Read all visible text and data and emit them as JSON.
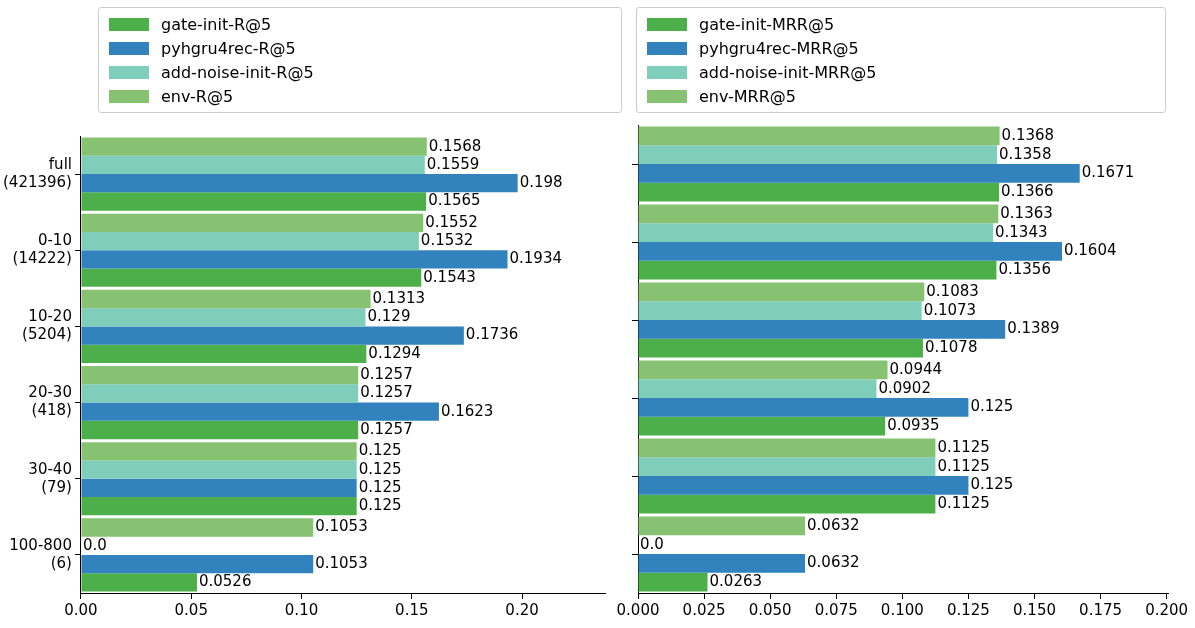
{
  "chart_data": [
    {
      "type": "bar",
      "orientation": "horizontal",
      "categories": [
        "full (421396)",
        "0-10 (14222)",
        "10-20 (5204)",
        "20-30 (418)",
        "30-40 (79)",
        "100-800 (6)"
      ],
      "series": [
        {
          "name": "gate-init-R@5",
          "color": "#4daf4a",
          "values": [
            0.1565,
            0.1543,
            0.1294,
            0.1257,
            0.125,
            0.0526
          ],
          "value_labels": [
            "0.1565",
            "0.1543",
            "0.1294",
            "0.1257",
            "0.125",
            "0.0526"
          ]
        },
        {
          "name": "pyhgru4rec-R@5",
          "color": "#3182bd",
          "values": [
            0.198,
            0.1934,
            0.1736,
            0.1623,
            0.125,
            0.1053
          ],
          "value_labels": [
            "0.198",
            "0.1934",
            "0.1736",
            "0.1623",
            "0.125",
            "0.1053"
          ]
        },
        {
          "name": "add-noise-init-R@5",
          "color": "#7fcdbb",
          "values": [
            0.1559,
            0.1532,
            0.129,
            0.1257,
            0.125,
            0.0
          ],
          "value_labels": [
            "0.1559",
            "0.1532",
            "0.129",
            "0.1257",
            "0.125",
            "0.0"
          ]
        },
        {
          "name": "env-R@5",
          "color": "#86c271",
          "values": [
            0.1568,
            0.1552,
            0.1313,
            0.1257,
            0.125,
            0.1053
          ],
          "value_labels": [
            "0.1568",
            "0.1552",
            "0.1313",
            "0.1257",
            "0.125",
            "0.1053"
          ]
        }
      ],
      "xlim": [
        0,
        0.2376
      ],
      "xticks": [
        {
          "value": 0,
          "label": "0.00"
        },
        {
          "value": 0.05,
          "label": "0.05"
        },
        {
          "value": 0.1,
          "label": "0.10"
        },
        {
          "value": 0.15,
          "label": "0.15"
        },
        {
          "value": 0.2,
          "label": "0.20"
        }
      ],
      "legend": "top"
    },
    {
      "type": "bar",
      "orientation": "horizontal",
      "categories": [
        null,
        null,
        null,
        null,
        null,
        null
      ],
      "series": [
        {
          "name": "gate-init-MRR@5",
          "color": "#4daf4a",
          "values": [
            0.1366,
            0.1356,
            0.1078,
            0.0935,
            0.1125,
            0.0263
          ],
          "value_labels": [
            "0.1366",
            "0.1356",
            "0.1078",
            "0.0935",
            "0.1125",
            "0.0263"
          ]
        },
        {
          "name": "pyhgru4rec-MRR@5",
          "color": "#3182bd",
          "values": [
            0.1671,
            0.1604,
            0.1389,
            0.125,
            0.125,
            0.0632
          ],
          "value_labels": [
            "0.1671",
            "0.1604",
            "0.1389",
            "0.125",
            "0.125",
            "0.0632"
          ]
        },
        {
          "name": "add-noise-init-MRR@5",
          "color": "#7fcdbb",
          "values": [
            0.1358,
            0.1343,
            0.1073,
            0.0902,
            0.1125,
            0.0
          ],
          "value_labels": [
            "0.1358",
            "0.1343",
            "0.1073",
            "0.0902",
            "0.1125",
            "0.0"
          ]
        },
        {
          "name": "env-MRR@5",
          "color": "#86c271",
          "values": [
            0.1368,
            0.1363,
            0.1083,
            0.0944,
            0.1125,
            0.0632
          ],
          "value_labels": [
            "0.1368",
            "0.1363",
            "0.1083",
            "0.0944",
            "0.1125",
            "0.0632"
          ]
        }
      ],
      "xlim": [
        0,
        0.2005
      ],
      "xticks": [
        {
          "value": 0,
          "label": "0.000"
        },
        {
          "value": 0.025,
          "label": "0.025"
        },
        {
          "value": 0.05,
          "label": "0.050"
        },
        {
          "value": 0.075,
          "label": "0.075"
        },
        {
          "value": 0.1,
          "label": "0.100"
        },
        {
          "value": 0.125,
          "label": "0.125"
        },
        {
          "value": 0.15,
          "label": "0.150"
        },
        {
          "value": 0.175,
          "label": "0.175"
        },
        {
          "value": 0.2,
          "label": "0.200"
        }
      ],
      "legend": "top",
      "tick_labels": "x"
    }
  ]
}
